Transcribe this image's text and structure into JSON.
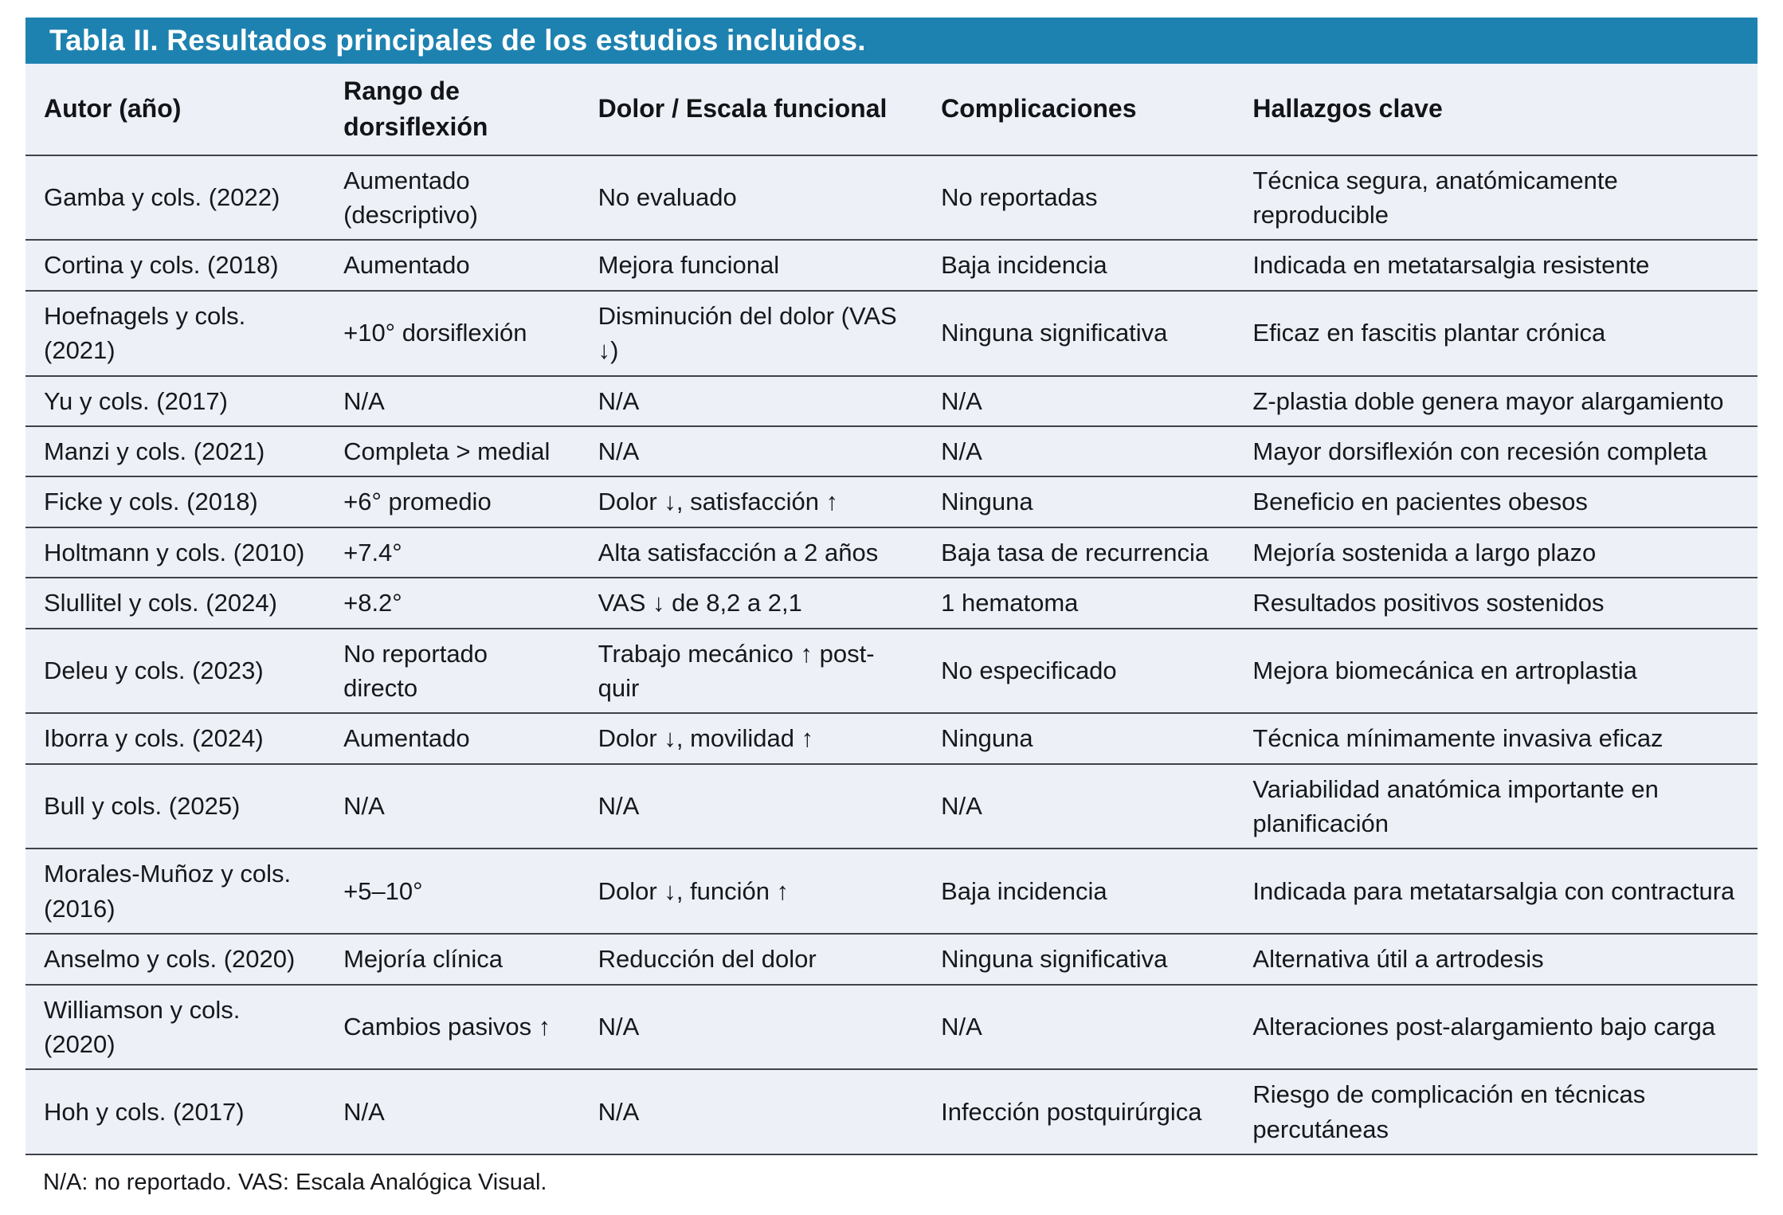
{
  "table": {
    "title": "Tabla II. Resultados principales de los estudios incluidos.",
    "columns": [
      "Autor (año)",
      "Rango de dorsiflexión",
      "Dolor / Escala funcional",
      "Complicaciones",
      "Hallazgos clave"
    ],
    "column_keys": [
      "author",
      "dorsiflexion-range",
      "pain-functional-scale",
      "complications",
      "key-findings"
    ],
    "rows": [
      [
        "Gamba y cols. (2022)",
        "Aumentado (descriptivo)",
        "No evaluado",
        "No reportadas",
        "Técnica segura, anatómicamente reproducible"
      ],
      [
        "Cortina y cols. (2018)",
        "Aumentado",
        "Mejora funcional",
        "Baja incidencia",
        "Indicada en metatarsalgia resistente"
      ],
      [
        "Hoefnagels y cols. (2021)",
        "+10° dorsiflexión",
        "Disminución del dolor (VAS ↓)",
        "Ninguna significativa",
        "Eficaz en fascitis plantar crónica"
      ],
      [
        "Yu y cols. (2017)",
        "N/A",
        "N/A",
        "N/A",
        "Z-plastia doble genera mayor alargamiento"
      ],
      [
        "Manzi y cols. (2021)",
        "Completa > medial",
        "N/A",
        "N/A",
        "Mayor dorsiflexión con recesión completa"
      ],
      [
        "Ficke y cols. (2018)",
        "+6° promedio",
        "Dolor ↓, satisfacción ↑",
        "Ninguna",
        "Beneficio en pacientes obesos"
      ],
      [
        "Holtmann y cols. (2010)",
        "+7.4°",
        "Alta satisfacción a 2 años",
        "Baja tasa de recurrencia",
        "Mejoría sostenida a largo plazo"
      ],
      [
        "Slullitel y cols. (2024)",
        "+8.2°",
        "VAS ↓ de 8,2 a 2,1",
        "1 hematoma",
        "Resultados positivos sostenidos"
      ],
      [
        "Deleu y cols. (2023)",
        "No reportado directo",
        "Trabajo mecánico ↑ post-quir",
        "No especificado",
        "Mejora biomecánica en artroplastia"
      ],
      [
        "Iborra y cols. (2024)",
        "Aumentado",
        "Dolor ↓, movilidad ↑",
        "Ninguna",
        "Técnica mínimamente invasiva eficaz"
      ],
      [
        "Bull y cols. (2025)",
        "N/A",
        "N/A",
        "N/A",
        "Variabilidad anatómica importante en planificación"
      ],
      [
        "Morales-Muñoz y cols. (2016)",
        "+5–10°",
        "Dolor ↓, función ↑",
        "Baja incidencia",
        "Indicada para metatarsalgia con contractura"
      ],
      [
        "Anselmo y cols. (2020)",
        "Mejoría clínica",
        "Reducción del dolor",
        "Ninguna significativa",
        "Alternativa útil a artrodesis"
      ],
      [
        "Williamson y cols. (2020)",
        "Cambios pasivos ↑",
        "N/A",
        "N/A",
        "Alteraciones post-alargamiento bajo carga"
      ],
      [
        "Hoh y cols. (2017)",
        "N/A",
        "N/A",
        "Infección postquirúrgica",
        "Riesgo de complicación en técnicas percutáneas"
      ]
    ],
    "footnote": "N/A: no reportado. VAS: Escala Analógica Visual.",
    "colors": {
      "title_bar_background": "#1e82b0",
      "title_text": "#ffffff",
      "row_background": "#edf0f7",
      "border": "#404448",
      "body_text": "#16181b"
    }
  }
}
